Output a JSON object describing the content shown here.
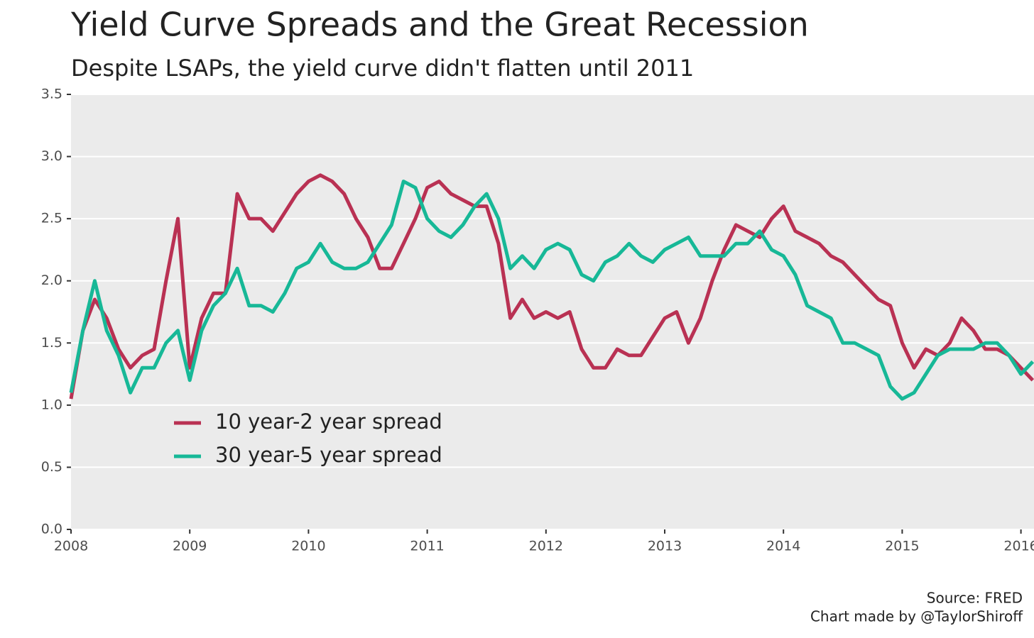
{
  "chart_data": {
    "type": "line",
    "title": "Yield Curve Spreads and the Great Recession",
    "subtitle": "Despite LSAPs, the yield curve didn't flatten until 2011",
    "caption": [
      "Source: FRED",
      "Chart made by @TaylorShiroff"
    ],
    "x": [
      2008.0,
      2008.1,
      2008.2,
      2008.3,
      2008.4,
      2008.5,
      2008.6,
      2008.7,
      2008.8,
      2008.9,
      2009.0,
      2009.1,
      2009.2,
      2009.3,
      2009.4,
      2009.5,
      2009.6,
      2009.7,
      2009.8,
      2009.9,
      2010.0,
      2010.1,
      2010.2,
      2010.3,
      2010.4,
      2010.5,
      2010.6,
      2010.7,
      2010.8,
      2010.9,
      2011.0,
      2011.1,
      2011.2,
      2011.3,
      2011.4,
      2011.5,
      2011.6,
      2011.7,
      2011.8,
      2011.9,
      2012.0,
      2012.1,
      2012.2,
      2012.3,
      2012.4,
      2012.5,
      2012.6,
      2012.7,
      2012.8,
      2012.9,
      2013.0,
      2013.1,
      2013.2,
      2013.3,
      2013.4,
      2013.5,
      2013.6,
      2013.7,
      2013.8,
      2013.9,
      2014.0,
      2014.1,
      2014.2,
      2014.3,
      2014.4,
      2014.5,
      2014.6,
      2014.7,
      2014.8,
      2014.9,
      2015.0,
      2015.1,
      2015.2,
      2015.3,
      2015.4,
      2015.5,
      2015.6,
      2015.7,
      2015.8,
      2015.9,
      2016.0,
      2016.1
    ],
    "series": [
      {
        "name": "10 year-2 year spread",
        "color": "#b93153",
        "values": [
          1.05,
          1.6,
          1.85,
          1.7,
          1.45,
          1.3,
          1.4,
          1.45,
          2.0,
          2.5,
          1.3,
          1.7,
          1.9,
          1.9,
          2.7,
          2.5,
          2.5,
          2.4,
          2.55,
          2.7,
          2.8,
          2.85,
          2.8,
          2.7,
          2.5,
          2.35,
          2.1,
          2.1,
          2.3,
          2.5,
          2.75,
          2.8,
          2.7,
          2.65,
          2.6,
          2.6,
          2.3,
          1.7,
          1.85,
          1.7,
          1.75,
          1.7,
          1.75,
          1.45,
          1.3,
          1.3,
          1.45,
          1.4,
          1.4,
          1.55,
          1.7,
          1.75,
          1.5,
          1.7,
          2.0,
          2.25,
          2.45,
          2.4,
          2.35,
          2.5,
          2.6,
          2.4,
          2.35,
          2.3,
          2.2,
          2.15,
          2.05,
          1.95,
          1.85,
          1.8,
          1.5,
          1.3,
          1.45,
          1.4,
          1.5,
          1.7,
          1.6,
          1.45,
          1.45,
          1.4,
          1.3,
          1.2
        ]
      },
      {
        "name": "30 year-5 year spread",
        "color": "#17b897",
        "values": [
          1.1,
          1.6,
          2.0,
          1.6,
          1.4,
          1.1,
          1.3,
          1.3,
          1.5,
          1.6,
          1.2,
          1.6,
          1.8,
          1.9,
          2.1,
          1.8,
          1.8,
          1.75,
          1.9,
          2.1,
          2.15,
          2.3,
          2.15,
          2.1,
          2.1,
          2.15,
          2.3,
          2.45,
          2.8,
          2.75,
          2.5,
          2.4,
          2.35,
          2.45,
          2.6,
          2.7,
          2.5,
          2.1,
          2.2,
          2.1,
          2.25,
          2.3,
          2.25,
          2.05,
          2.0,
          2.15,
          2.2,
          2.3,
          2.2,
          2.15,
          2.25,
          2.3,
          2.35,
          2.2,
          2.2,
          2.2,
          2.3,
          2.3,
          2.4,
          2.25,
          2.2,
          2.05,
          1.8,
          1.75,
          1.7,
          1.5,
          1.5,
          1.45,
          1.4,
          1.15,
          1.05,
          1.1,
          1.25,
          1.4,
          1.45,
          1.45,
          1.45,
          1.5,
          1.5,
          1.4,
          1.25,
          1.35
        ]
      }
    ],
    "xlim": [
      2008,
      2016.11
    ],
    "xticks": [
      2008,
      2009,
      2010,
      2011,
      2012,
      2013,
      2014,
      2015,
      2016
    ],
    "ylim": [
      0,
      3.5
    ],
    "yticks": [
      {
        "value": 0,
        "label": "0.0"
      },
      0.5,
      {
        "value": 1,
        "label": "1.0"
      },
      1.5,
      {
        "value": 2,
        "label": "2.0"
      },
      2.5,
      {
        "value": 3,
        "label": "3.0"
      },
      3.5
    ],
    "grid": true
  }
}
